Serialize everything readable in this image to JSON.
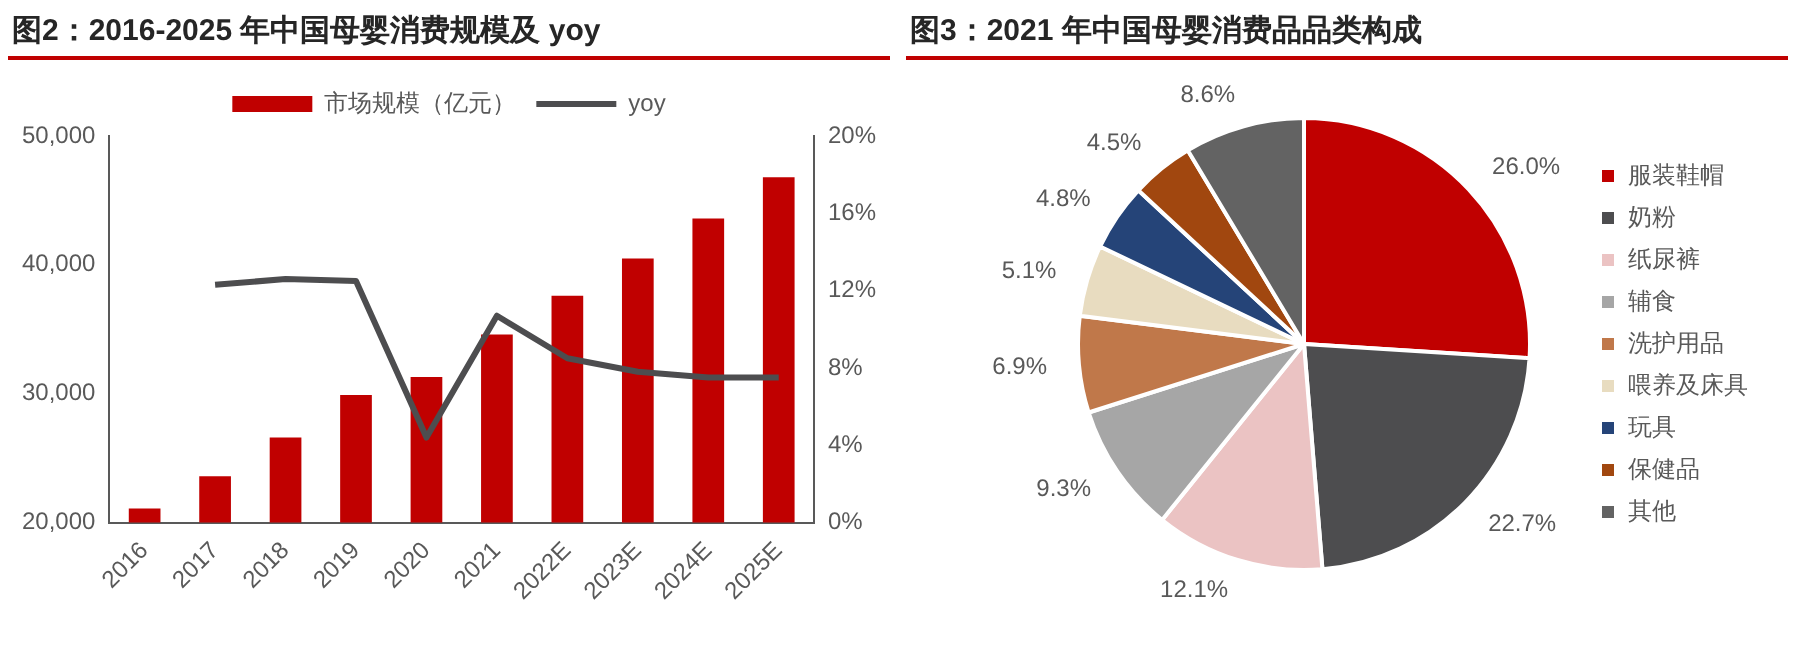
{
  "chart_data": [
    {
      "type": "bar",
      "title": "图2：2016-2025 年中国母婴消费规模及 yoy",
      "categories": [
        "2016",
        "2017",
        "2018",
        "2019",
        "2020",
        "2021",
        "2022E",
        "2023E",
        "2024E",
        "2025E"
      ],
      "series": [
        {
          "name": "市场规模（亿元）",
          "color": "#c00000",
          "values": [
            21100,
            23600,
            26600,
            29900,
            31300,
            34600,
            37600,
            40500,
            43600,
            46800
          ]
        },
        {
          "name": "yoy",
          "type": "line",
          "axis": "y2",
          "color": "#4d4d4f",
          "values": [
            null,
            12.3,
            12.6,
            12.5,
            4.4,
            10.7,
            8.5,
            7.8,
            7.5,
            7.5
          ]
        }
      ],
      "ylim": [
        20000,
        50000
      ],
      "yticks": [
        {
          "value": 20000,
          "label": "20,000"
        },
        {
          "value": 30000,
          "label": "30,000"
        },
        {
          "value": 40000,
          "label": "40,000"
        },
        {
          "value": 50000,
          "label": "50,000"
        }
      ],
      "y2lim": [
        0,
        20
      ],
      "y2ticks": [
        {
          "value": 0,
          "label": "0%"
        },
        {
          "value": 4,
          "label": "4%"
        },
        {
          "value": 8,
          "label": "8%"
        },
        {
          "value": 12,
          "label": "12%"
        },
        {
          "value": 16,
          "label": "16%"
        },
        {
          "value": 20,
          "label": "20%"
        }
      ],
      "legend": "top",
      "marker": "none"
    },
    {
      "type": "pie",
      "title": "图3：2021 年中国母婴消费品品类构成",
      "categories": [
        "服装鞋帽",
        "奶粉",
        "纸尿裤",
        "辅食",
        "洗护用品",
        "喂养及床具",
        "玩具",
        "保健品",
        "其他"
      ],
      "values": [
        26.0,
        22.7,
        12.1,
        9.3,
        6.9,
        5.1,
        4.8,
        4.5,
        8.6
      ],
      "colors": [
        "#c00000",
        "#4d4d4f",
        "#ebc3c3",
        "#a6a6a6",
        "#c0784a",
        "#e8dcc0",
        "#254478",
        "#a1470f",
        "#636363"
      ],
      "value_labels": [
        "26.0%",
        "22.7%",
        "12.1%",
        "9.3%",
        "6.9%",
        "5.1%",
        "4.8%",
        "4.5%",
        "8.6%"
      ],
      "legend": "right"
    }
  ]
}
